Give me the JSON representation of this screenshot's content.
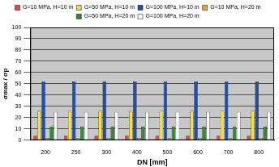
{
  "chart_data": {
    "type": "bar",
    "x_label": "DN [mm]",
    "y_label": "σmax / σp",
    "categories": [
      "200",
      "250",
      "300",
      "400",
      "500",
      "600",
      "700",
      "800"
    ],
    "series": [
      {
        "name": "G=10 MPa, H=10 m",
        "color": "#e8473c",
        "values": [
          4,
          4,
          4,
          4,
          4,
          4,
          4,
          4
        ]
      },
      {
        "name": "G=50 MPa, H=10 m",
        "color": "#f5e13a",
        "values": [
          26,
          26,
          26,
          26,
          26,
          26,
          26,
          26
        ]
      },
      {
        "name": "G=100 MPa, H=10 m",
        "color": "#1f4fa8",
        "values": [
          52,
          52,
          52,
          52,
          52,
          52,
          52,
          52
        ]
      },
      {
        "name": "G=10 MPa, H=20 m",
        "color": "#f0a830",
        "values": [
          2,
          2,
          2,
          2,
          2,
          2,
          2,
          2
        ]
      },
      {
        "name": "G=50 MPa, H=20 m",
        "color": "#2e8b3a",
        "values": [
          12,
          12,
          12,
          12,
          12,
          12,
          12,
          12
        ]
      },
      {
        "name": "G=100 MPa, H=20 m",
        "color": "#ffffff",
        "values": [
          25,
          25,
          25,
          25,
          25,
          25,
          25,
          25
        ]
      }
    ],
    "ylim": [
      0,
      100
    ],
    "yticks": [
      0,
      10,
      20,
      30,
      40,
      50,
      60,
      70,
      80,
      90,
      100
    ],
    "grid": true,
    "legend": "top"
  }
}
